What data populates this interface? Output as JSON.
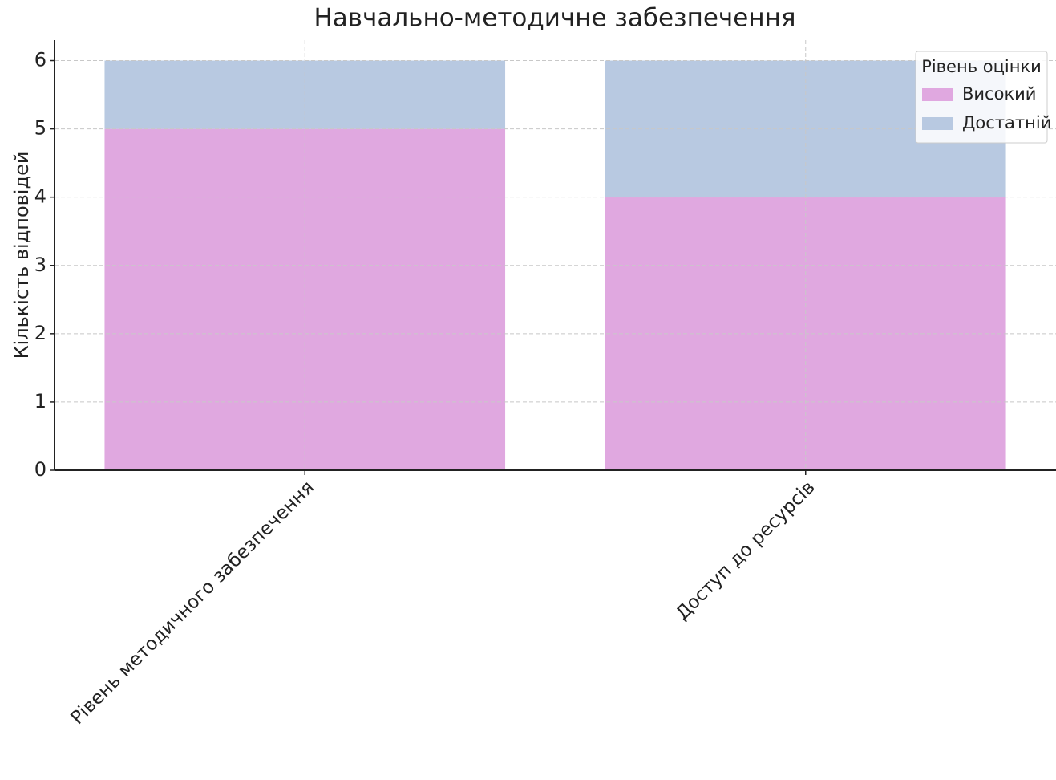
{
  "chart_data": {
    "type": "stacked_bar",
    "title": "Навчально-методичне забезпечення",
    "ylabel": "Кількість відповідей",
    "categories": [
      "Рівень методичного забезпечення",
      "Доступ до ресурсів"
    ],
    "series": [
      {
        "name": "Високий",
        "color": "#e0a8e0",
        "values": [
          5,
          4
        ]
      },
      {
        "name": "Достатній",
        "color": "#b8c9e1",
        "values": [
          1,
          2
        ]
      }
    ],
    "legend_title": "Рівень оцінки",
    "legend": "upper right",
    "ylim": [
      0,
      6.3
    ],
    "yticks": [
      0,
      1,
      2,
      3,
      4,
      5,
      6
    ],
    "grid": true
  }
}
